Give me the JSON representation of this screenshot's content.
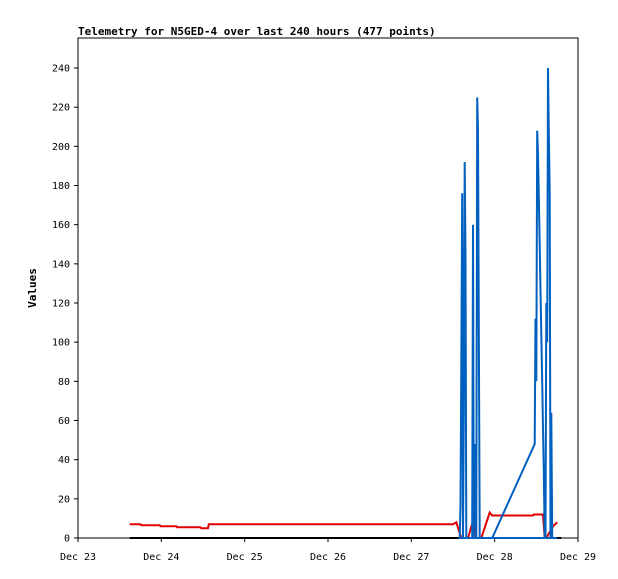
{
  "chart_data": {
    "type": "line",
    "title": "Telemetry for N5GED-4 over last 240 hours (477 points)",
    "xlabel": "",
    "ylabel": "Values",
    "x_unit": "days (Dec 23 = 0)",
    "xlim": [
      0,
      6
    ],
    "ylim": [
      0,
      255
    ],
    "x_ticks": [
      {
        "value": 0,
        "label": "Dec 23"
      },
      {
        "value": 1,
        "label": "Dec 24"
      },
      {
        "value": 2,
        "label": "Dec 25"
      },
      {
        "value": 3,
        "label": "Dec 26"
      },
      {
        "value": 4,
        "label": "Dec 27"
      },
      {
        "value": 5,
        "label": "Dec 28"
      },
      {
        "value": 6,
        "label": "Dec 29"
      }
    ],
    "y_ticks": [
      0,
      20,
      40,
      60,
      80,
      100,
      120,
      140,
      160,
      180,
      200,
      220,
      240
    ],
    "grid": false,
    "legend": "none",
    "series": [
      {
        "color": "#000000",
        "points": [
          [
            0.62,
            0
          ],
          [
            5.8,
            0
          ]
        ]
      },
      {
        "color": "#e00000",
        "points": [
          [
            0.62,
            7.0
          ],
          [
            0.75,
            7.0
          ],
          [
            0.76,
            6.5
          ],
          [
            0.98,
            6.5
          ],
          [
            0.99,
            6.0
          ],
          [
            1.18,
            6.0
          ],
          [
            1.19,
            5.5
          ],
          [
            1.47,
            5.5
          ],
          [
            1.48,
            5.0
          ],
          [
            1.56,
            5.0
          ],
          [
            1.57,
            7.0
          ],
          [
            4.5,
            7.0
          ],
          [
            4.54,
            8.0
          ],
          [
            4.6,
            0
          ],
          [
            4.68,
            0
          ],
          [
            4.75,
            10.0
          ],
          [
            4.78,
            0
          ],
          [
            4.84,
            0
          ],
          [
            4.94,
            13.0
          ],
          [
            4.97,
            11.5
          ],
          [
            5.46,
            11.5
          ],
          [
            5.47,
            12.0
          ],
          [
            5.58,
            12.0
          ],
          [
            5.6,
            0
          ],
          [
            5.62,
            0
          ],
          [
            5.7,
            6.0
          ],
          [
            5.75,
            8.0
          ]
        ]
      },
      {
        "color": "#0060c0",
        "points": [
          [
            5.75,
            0
          ],
          [
            5.52,
            0
          ],
          [
            4.94,
            0
          ],
          [
            4.9,
            0
          ],
          [
            4.82,
            0
          ],
          [
            4.8,
            208
          ],
          [
            4.79,
            225
          ],
          [
            4.78,
            0
          ],
          [
            4.76,
            48
          ],
          [
            4.75,
            0
          ],
          [
            4.74,
            160
          ],
          [
            4.73,
            0
          ],
          [
            4.66,
            0
          ],
          [
            4.65,
            145
          ],
          [
            4.64,
            192
          ],
          [
            4.63,
            64
          ],
          [
            4.62,
            0
          ],
          [
            4.61,
            176
          ],
          [
            4.6,
            88
          ],
          [
            4.59,
            16
          ],
          [
            4.58,
            0
          ],
          [
            4.97,
            0
          ],
          [
            5.48,
            48
          ],
          [
            5.49,
            112
          ],
          [
            5.5,
            80
          ],
          [
            5.51,
            208
          ],
          [
            5.52,
            196
          ],
          [
            5.53,
            174
          ],
          [
            5.54,
            150
          ],
          [
            5.55,
            126
          ],
          [
            5.56,
            104
          ],
          [
            5.57,
            80
          ],
          [
            5.58,
            56
          ],
          [
            5.59,
            34
          ],
          [
            5.6,
            0
          ],
          [
            5.61,
            0
          ],
          [
            5.62,
            120
          ],
          [
            5.63,
            100
          ],
          [
            5.64,
            240
          ],
          [
            5.65,
            208
          ],
          [
            5.66,
            176
          ],
          [
            5.67,
            0
          ],
          [
            5.68,
            64
          ],
          [
            5.69,
            0
          ]
        ]
      }
    ]
  }
}
